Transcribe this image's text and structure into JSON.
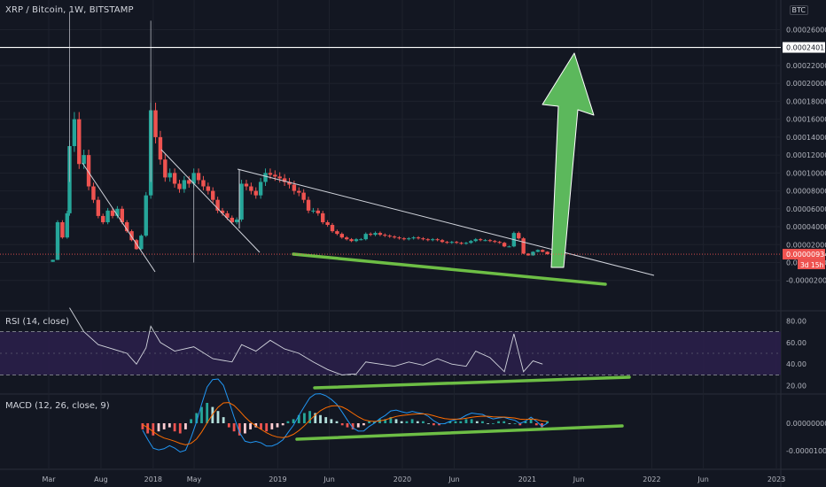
{
  "header": {
    "title": "XRP / Bitcoin, 1W, BITSTAMP",
    "currency": "BTC"
  },
  "chart_data": [
    {
      "type": "candlestick",
      "title": "XRP / Bitcoin, 1W, BITSTAMP",
      "y_ticks": [
        "0.00026000",
        "0.00024018",
        "0.00022000",
        "0.00020000",
        "0.00018000",
        "0.00016000",
        "0.00014000",
        "0.00012000",
        "0.00010000",
        "0.00008000",
        "0.00006000",
        "0.00004000",
        "0.00002000",
        "0.00000000",
        "-0.00002000"
      ],
      "ylim": [
        -2e-05,
        0.000285
      ],
      "last_price": "0.00000934",
      "countdown": "3d 15h",
      "horizontal_line": 0.00024018,
      "price_series": [
        {
          "x": "2017-02-20",
          "y": 8e-07
        },
        {
          "x": "2017-03-13",
          "y": 3e-06
        },
        {
          "x": "2017-03-27",
          "y": 4.5e-05
        },
        {
          "x": "2017-04-10",
          "y": 2.8e-05
        },
        {
          "x": "2017-04-24",
          "y": 5.5e-05
        },
        {
          "x": "2017-05-01",
          "y": 0.00013
        },
        {
          "x": "2017-05-15",
          "y": 0.00016
        },
        {
          "x": "2017-05-29",
          "y": 0.00011
        },
        {
          "x": "2017-06-12",
          "y": 0.00012
        },
        {
          "x": "2017-06-26",
          "y": 8.5e-05
        },
        {
          "x": "2017-07-10",
          "y": 7e-05
        },
        {
          "x": "2017-07-24",
          "y": 5.2e-05
        },
        {
          "x": "2017-08-07",
          "y": 4.5e-05
        },
        {
          "x": "2017-08-21",
          "y": 5.8e-05
        },
        {
          "x": "2017-09-04",
          "y": 5.2e-05
        },
        {
          "x": "2017-09-18",
          "y": 6e-05
        },
        {
          "x": "2017-10-02",
          "y": 4.5e-05
        },
        {
          "x": "2017-10-16",
          "y": 3.5e-05
        },
        {
          "x": "2017-10-30",
          "y": 2.5e-05
        },
        {
          "x": "2017-11-13",
          "y": 1.5e-05
        },
        {
          "x": "2017-11-27",
          "y": 3e-05
        },
        {
          "x": "2017-12-11",
          "y": 7.5e-05
        },
        {
          "x": "2017-12-25",
          "y": 0.00017
        },
        {
          "x": "2018-01-08",
          "y": 0.00014
        },
        {
          "x": "2018-01-22",
          "y": 0.000115
        },
        {
          "x": "2018-02-05",
          "y": 9.5e-05
        },
        {
          "x": "2018-02-19",
          "y": 0.0001
        },
        {
          "x": "2018-03-05",
          "y": 8.8e-05
        },
        {
          "x": "2018-03-19",
          "y": 8.2e-05
        },
        {
          "x": "2018-04-02",
          "y": 9.2e-05
        },
        {
          "x": "2018-04-16",
          "y": 8.8e-05
        },
        {
          "x": "2018-04-30",
          "y": 0.0001
        },
        {
          "x": "2018-05-14",
          "y": 9.2e-05
        },
        {
          "x": "2018-05-28",
          "y": 8.5e-05
        },
        {
          "x": "2018-06-11",
          "y": 8e-05
        },
        {
          "x": "2018-06-25",
          "y": 7e-05
        },
        {
          "x": "2018-07-09",
          "y": 5.8e-05
        },
        {
          "x": "2018-07-23",
          "y": 5.5e-05
        },
        {
          "x": "2018-08-06",
          "y": 5e-05
        },
        {
          "x": "2018-08-20",
          "y": 4.5e-05
        },
        {
          "x": "2018-09-03",
          "y": 4.8e-05
        },
        {
          "x": "2018-09-17",
          "y": 8.8e-05
        },
        {
          "x": "2018-10-01",
          "y": 8.5e-05
        },
        {
          "x": "2018-10-15",
          "y": 8e-05
        },
        {
          "x": "2018-10-29",
          "y": 7.5e-05
        },
        {
          "x": "2018-11-12",
          "y": 9e-05
        },
        {
          "x": "2018-11-26",
          "y": 0.0001
        },
        {
          "x": "2018-12-10",
          "y": 9.8e-05
        },
        {
          "x": "2018-12-24",
          "y": 9.6e-05
        },
        {
          "x": "2019-01-07",
          "y": 9.4e-05
        },
        {
          "x": "2019-01-21",
          "y": 9e-05
        },
        {
          "x": "2019-02-04",
          "y": 8.7e-05
        },
        {
          "x": "2019-02-18",
          "y": 8e-05
        },
        {
          "x": "2019-03-04",
          "y": 7.8e-05
        },
        {
          "x": "2019-03-18",
          "y": 7e-05
        },
        {
          "x": "2019-04-01",
          "y": 5.8e-05
        },
        {
          "x": "2019-04-15",
          "y": 5.8e-05
        },
        {
          "x": "2019-04-29",
          "y": 5.5e-05
        },
        {
          "x": "2019-05-13",
          "y": 4.5e-05
        },
        {
          "x": "2019-05-27",
          "y": 4.2e-05
        },
        {
          "x": "2019-06-10",
          "y": 3.5e-05
        },
        {
          "x": "2019-06-24",
          "y": 3.2e-05
        },
        {
          "x": "2019-07-08",
          "y": 2.8e-05
        },
        {
          "x": "2019-07-22",
          "y": 2.6e-05
        },
        {
          "x": "2019-08-05",
          "y": 2.4e-05
        },
        {
          "x": "2019-08-19",
          "y": 2.6e-05
        },
        {
          "x": "2019-09-02",
          "y": 2.6e-05
        },
        {
          "x": "2019-09-16",
          "y": 3.2e-05
        },
        {
          "x": "2019-09-30",
          "y": 3.1e-05
        },
        {
          "x": "2019-10-14",
          "y": 3.3e-05
        },
        {
          "x": "2019-10-28",
          "y": 3.1e-05
        },
        {
          "x": "2019-11-11",
          "y": 3e-05
        },
        {
          "x": "2019-11-25",
          "y": 2.9e-05
        },
        {
          "x": "2019-12-09",
          "y": 2.8e-05
        },
        {
          "x": "2019-12-23",
          "y": 2.7e-05
        },
        {
          "x": "2020-01-06",
          "y": 2.6e-05
        },
        {
          "x": "2020-01-20",
          "y": 2.7e-05
        },
        {
          "x": "2020-02-03",
          "y": 2.8e-05
        },
        {
          "x": "2020-02-17",
          "y": 2.7e-05
        },
        {
          "x": "2020-03-02",
          "y": 2.6e-05
        },
        {
          "x": "2020-03-16",
          "y": 2.5e-05
        },
        {
          "x": "2020-03-30",
          "y": 2.6e-05
        },
        {
          "x": "2020-04-13",
          "y": 2.5e-05
        },
        {
          "x": "2020-04-27",
          "y": 2.3e-05
        },
        {
          "x": "2020-05-11",
          "y": 2.2e-05
        },
        {
          "x": "2020-05-25",
          "y": 2.3e-05
        },
        {
          "x": "2020-06-08",
          "y": 2.2e-05
        },
        {
          "x": "2020-06-22",
          "y": 2.1e-05
        },
        {
          "x": "2020-07-06",
          "y": 2.2e-05
        },
        {
          "x": "2020-07-20",
          "y": 2.4e-05
        },
        {
          "x": "2020-08-03",
          "y": 2.6e-05
        },
        {
          "x": "2020-08-17",
          "y": 2.5e-05
        },
        {
          "x": "2020-08-31",
          "y": 2.5e-05
        },
        {
          "x": "2020-09-14",
          "y": 2.4e-05
        },
        {
          "x": "2020-09-28",
          "y": 2.3e-05
        },
        {
          "x": "2020-10-12",
          "y": 2.2e-05
        },
        {
          "x": "2020-10-26",
          "y": 1.8e-05
        },
        {
          "x": "2020-11-09",
          "y": 1.8e-05
        },
        {
          "x": "2020-11-23",
          "y": 3.3e-05
        },
        {
          "x": "2020-12-07",
          "y": 2.7e-05
        },
        {
          "x": "2020-12-21",
          "y": 1e-05
        },
        {
          "x": "2021-01-04",
          "y": 8e-06
        },
        {
          "x": "2021-01-18",
          "y": 1.2e-05
        },
        {
          "x": "2021-02-01",
          "y": 1.4e-05
        },
        {
          "x": "2021-02-15",
          "y": 1.2e-05
        },
        {
          "x": "2021-03-01",
          "y": 9.3e-06
        }
      ]
    },
    {
      "type": "line",
      "title": "RSI (14, close)",
      "y_ticks": [
        "80.00",
        "60.00",
        "40.00",
        "20.00"
      ],
      "band": [
        30,
        70
      ],
      "rsi_series": [
        {
          "x": "2017-05-01",
          "y": 92
        },
        {
          "x": "2017-06-12",
          "y": 70
        },
        {
          "x": "2017-07-24",
          "y": 58
        },
        {
          "x": "2017-09-04",
          "y": 54
        },
        {
          "x": "2017-10-16",
          "y": 50
        },
        {
          "x": "2017-11-13",
          "y": 40
        },
        {
          "x": "2017-12-11",
          "y": 55
        },
        {
          "x": "2017-12-25",
          "y": 75
        },
        {
          "x": "2018-01-22",
          "y": 60
        },
        {
          "x": "2018-03-05",
          "y": 52
        },
        {
          "x": "2018-04-30",
          "y": 56
        },
        {
          "x": "2018-06-25",
          "y": 45
        },
        {
          "x": "2018-08-20",
          "y": 42
        },
        {
          "x": "2018-09-17",
          "y": 58
        },
        {
          "x": "2018-10-29",
          "y": 52
        },
        {
          "x": "2018-12-10",
          "y": 62
        },
        {
          "x": "2019-01-21",
          "y": 54
        },
        {
          "x": "2019-03-04",
          "y": 50
        },
        {
          "x": "2019-04-15",
          "y": 42
        },
        {
          "x": "2019-05-27",
          "y": 35
        },
        {
          "x": "2019-07-08",
          "y": 30
        },
        {
          "x": "2019-08-19",
          "y": 31
        },
        {
          "x": "2019-09-16",
          "y": 42
        },
        {
          "x": "2019-10-28",
          "y": 40
        },
        {
          "x": "2019-12-09",
          "y": 38
        },
        {
          "x": "2020-01-20",
          "y": 42
        },
        {
          "x": "2020-03-02",
          "y": 39
        },
        {
          "x": "2020-04-13",
          "y": 45
        },
        {
          "x": "2020-05-25",
          "y": 40
        },
        {
          "x": "2020-07-06",
          "y": 38
        },
        {
          "x": "2020-08-03",
          "y": 52
        },
        {
          "x": "2020-09-14",
          "y": 46
        },
        {
          "x": "2020-10-26",
          "y": 33
        },
        {
          "x": "2020-11-23",
          "y": 68
        },
        {
          "x": "2020-12-21",
          "y": 33
        },
        {
          "x": "2021-01-18",
          "y": 43
        },
        {
          "x": "2021-02-15",
          "y": 40
        }
      ]
    },
    {
      "type": "bar",
      "title": "MACD (12, 26, close, 9)",
      "y_ticks": [
        "0.00000000",
        "-0.00001000"
      ],
      "histogram_x_range": [
        "2017-12-01",
        "2021-03-01"
      ],
      "histogram": [
        -3,
        -5,
        -6,
        -4,
        -3,
        -2,
        -4,
        -5,
        -3,
        2,
        5,
        8,
        10,
        8,
        6,
        3,
        -2,
        -4,
        -6,
        -5,
        -3,
        -2,
        -3,
        -4,
        -3,
        -2,
        -1,
        1,
        2,
        4,
        5,
        6,
        5,
        4,
        3,
        2,
        1,
        -1,
        -2,
        -3,
        -2,
        -1,
        1,
        1,
        2,
        2,
        3,
        2,
        1,
        1,
        2,
        1,
        1,
        0,
        -1,
        -1,
        0,
        1,
        1,
        1,
        2,
        2,
        1,
        1,
        0,
        0,
        1,
        1,
        0,
        0,
        -1,
        1,
        2,
        -1,
        -2,
        1
      ]
    }
  ],
  "x_axis": {
    "labels": [
      "Mar",
      "Aug",
      "2018",
      "May",
      "2019",
      "Jun",
      "2020",
      "Jun",
      "2021",
      "Jun",
      "2022",
      "Jun",
      "2023"
    ]
  },
  "annotations": {
    "arrow_color": "#5cb85c",
    "support_color": "#6dbe45",
    "trendline_color": "#d1d4dc"
  },
  "colors": {
    "up": "#26a69a",
    "down": "#ef5350",
    "rsi_line": "#d1d4dc",
    "rsi_band": "#2a1f49",
    "macd_line": "#2196f3",
    "signal_line": "#ff6d00"
  }
}
